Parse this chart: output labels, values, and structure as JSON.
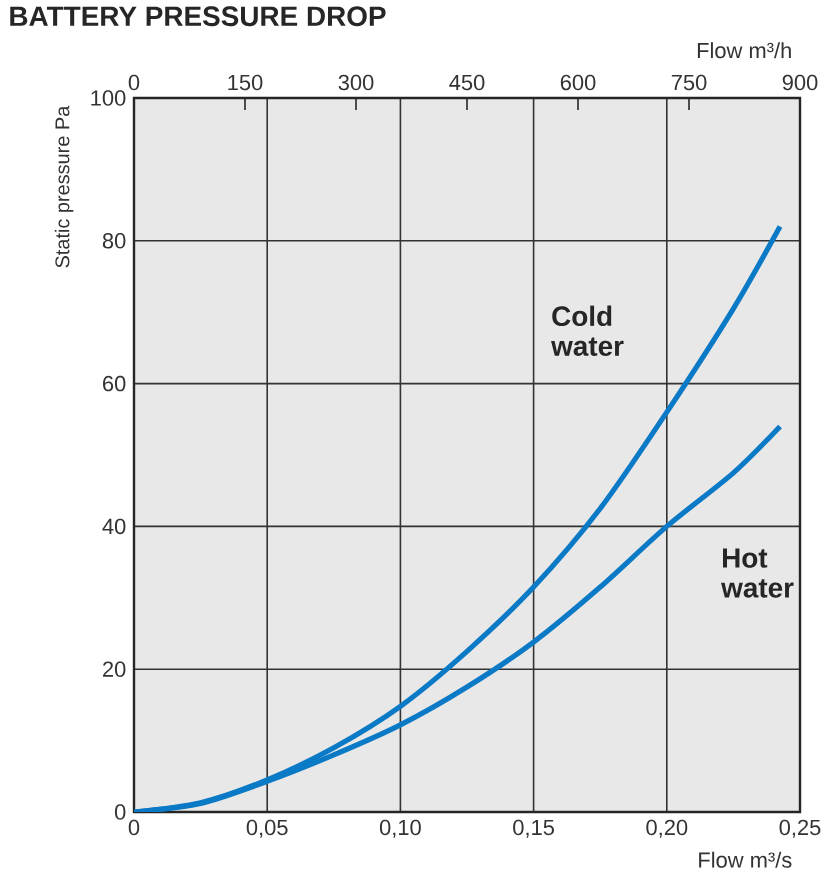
{
  "chart_data": {
    "type": "line",
    "title": "BATTERY PRESSURE DROP",
    "xlabel": "Flow m³/s",
    "x2label": "Flow m³/h",
    "ylabel": "Static pressure Pa",
    "xlim": [
      0,
      0.25
    ],
    "xticks": [
      0,
      {
        "value": 0.05,
        "label": "0,05"
      },
      {
        "value": 0.1,
        "label": "0,10"
      },
      {
        "value": 0.15,
        "label": "0,15"
      },
      {
        "value": 0.2,
        "label": "0,20"
      },
      {
        "value": 0.25,
        "label": "0,25"
      }
    ],
    "x2lim": [
      0,
      900
    ],
    "x2ticks": [
      0,
      150,
      300,
      450,
      600,
      750,
      900
    ],
    "ylim": [
      0,
      100
    ],
    "yticks": [
      0,
      20,
      40,
      60,
      80,
      100
    ],
    "grid": true,
    "x": [
      0,
      0.025,
      0.05,
      0.075,
      0.1,
      0.125,
      0.15,
      0.175,
      0.2,
      0.225,
      0.2425
    ],
    "series": [
      {
        "name": "Cold water",
        "color": "#0a7ac6",
        "values": [
          0,
          1.3,
          4.5,
          9,
          14.8,
          22.5,
          31.5,
          42.5,
          56,
          70.5,
          82
        ]
      },
      {
        "name": "Hot water",
        "color": "#0a7ac6",
        "values": [
          0,
          1.2,
          4.3,
          8,
          12.2,
          17.5,
          23.8,
          31.5,
          40,
          47.5,
          54
        ]
      }
    ]
  }
}
